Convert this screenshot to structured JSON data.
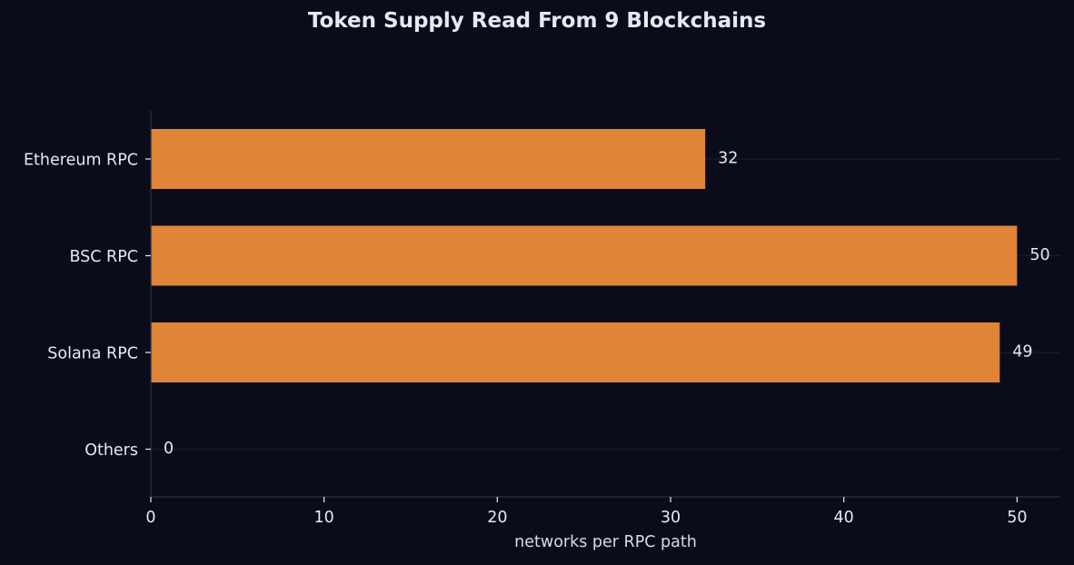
{
  "chart_data": {
    "type": "bar",
    "orientation": "horizontal",
    "title": "Token Supply Read From 9 Blockchains",
    "xlabel": "networks per RPC path",
    "ylabel": "",
    "categories": [
      "Ethereum RPC",
      "BSC RPC",
      "Solana RPC",
      "Others"
    ],
    "values": [
      32,
      50,
      49,
      0
    ],
    "value_labels": [
      "32",
      "50",
      "49",
      "0"
    ],
    "xlim": [
      0,
      52.5
    ],
    "xticks": [
      0,
      10,
      20,
      30,
      40,
      50
    ],
    "xtick_labels": [
      "0",
      "10",
      "20",
      "30",
      "40",
      "50"
    ],
    "grid": "horizontal",
    "bar_color": "#e08438",
    "background_color": "#0a0d19"
  }
}
